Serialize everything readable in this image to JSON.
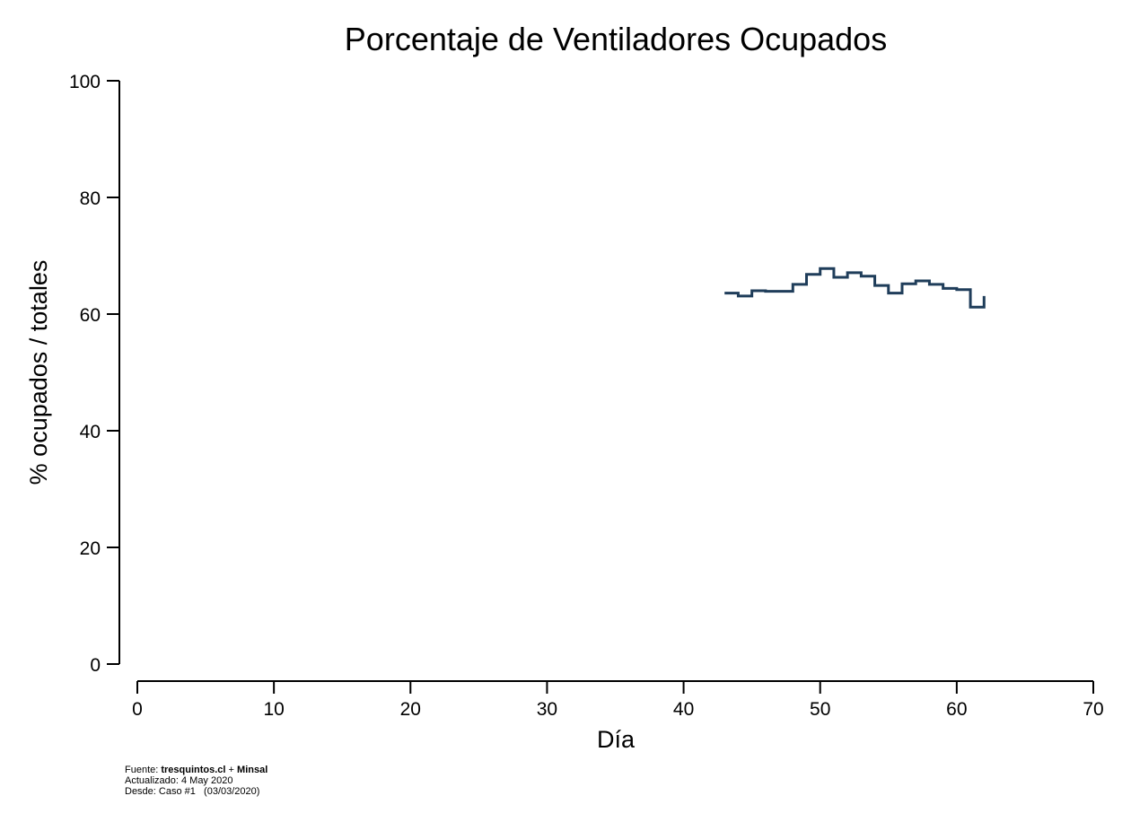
{
  "chart_data": {
    "type": "line",
    "step": true,
    "title": "Porcentaje de Ventiladores Ocupados",
    "xlabel": "Día",
    "ylabel": "% ocupados / totales",
    "xlim": [
      0,
      70
    ],
    "ylim": [
      0,
      100
    ],
    "xticks": [
      0,
      10,
      20,
      30,
      40,
      50,
      60,
      70
    ],
    "yticks": [
      0,
      20,
      40,
      60,
      80,
      100
    ],
    "grid": false,
    "line_color": "#1f3d5a",
    "series": [
      {
        "x": [
          43,
          44,
          45,
          46,
          47,
          48,
          49,
          50,
          51,
          52,
          53,
          54,
          55,
          56,
          57,
          58,
          59,
          60,
          61,
          62
        ],
        "y": [
          63.6,
          63.1,
          64.0,
          63.9,
          63.9,
          65.1,
          66.8,
          67.8,
          66.3,
          67.1,
          66.5,
          64.9,
          63.6,
          65.2,
          65.7,
          65.1,
          64.4,
          64.2,
          61.2,
          63.1
        ]
      }
    ]
  },
  "footnote": {
    "source_prefix": "Fuente: ",
    "source_bold": "tresquintos.cl",
    "source_plus": " + ",
    "source_bold2": "Minsal",
    "updated": "Actualizado: 4 May 2020",
    "since": "Desde: Caso #1   (03/03/2020)"
  }
}
